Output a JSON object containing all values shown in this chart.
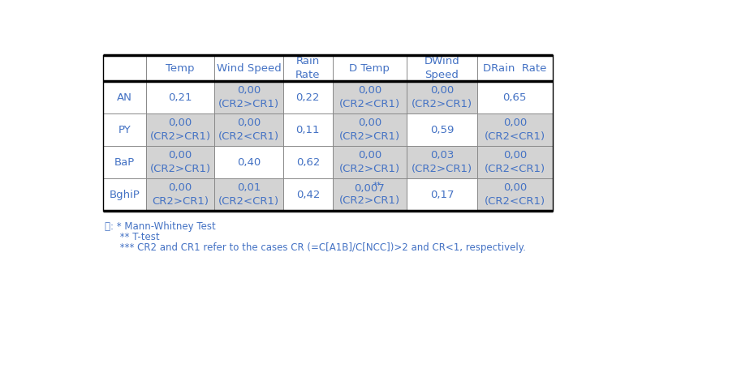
{
  "headers": [
    "",
    "Temp",
    "Wind Speed",
    "Rain\nRate",
    "D Temp",
    "DWind\nSpeed",
    "DRain  Rate"
  ],
  "rows": [
    {
      "label": "AN",
      "cells": [
        {
          "text": "0,21",
          "shaded": false
        },
        {
          "text": "0,00\n(CR2>CR1)",
          "shaded": true
        },
        {
          "text": "0,22",
          "shaded": false
        },
        {
          "text": "0,00\n(CR2<CR1)",
          "shaded": true
        },
        {
          "text": "0,00\n(CR2>CR1)",
          "shaded": true
        },
        {
          "text": "0,65",
          "shaded": false
        }
      ]
    },
    {
      "label": "PY",
      "cells": [
        {
          "text": "0,00\n(CR2>CR1)",
          "shaded": true
        },
        {
          "text": "0,00\n(CR2<CR1)",
          "shaded": true
        },
        {
          "text": "0,11",
          "shaded": false
        },
        {
          "text": "0,00\n(CR2>CR1)",
          "shaded": true
        },
        {
          "text": "0,59",
          "shaded": false
        },
        {
          "text": "0,00\n(CR2<CR1)",
          "shaded": true
        }
      ]
    },
    {
      "label": "BaP",
      "cells": [
        {
          "text": "0,00\n(CR2>CR1)",
          "shaded": true
        },
        {
          "text": "0,40",
          "shaded": false
        },
        {
          "text": "0,62",
          "shaded": false
        },
        {
          "text": "0,00\n(CR2>CR1)",
          "shaded": true
        },
        {
          "text": "0,03\n(CR2>CR1)",
          "shaded": true
        },
        {
          "text": "0,00\n(CR2<CR1)",
          "shaded": true
        }
      ]
    },
    {
      "label": "BghiP",
      "cells": [
        {
          "text": "0,00\nCR2>CR1)",
          "shaded": true
        },
        {
          "text": "0,01\n(CR2<CR1)",
          "shaded": true
        },
        {
          "text": "0,42",
          "shaded": false
        },
        {
          "text": "0,007²\n(CR2>CR1)",
          "shaded": true,
          "superscript": "**",
          "base": "0,007"
        },
        {
          "text": "0,17",
          "shaded": false
        },
        {
          "text": "0,00\n(CR2<CR1)",
          "shaded": true
        }
      ]
    }
  ],
  "text_color": "#4472c4",
  "shaded_color": "#d3d3d3",
  "white_color": "#ffffff",
  "header_bg": "#ffffff",
  "font_size": 9.5,
  "header_font_size": 9.5,
  "footnote1": "主: * Mann-Whitney Test",
  "footnote2": "     ** T-test",
  "footnote3": "     *** CR2 and CR1 refer to the cases CR (=C[A1B]/C[NCC])>2 and CR<1, respectively."
}
